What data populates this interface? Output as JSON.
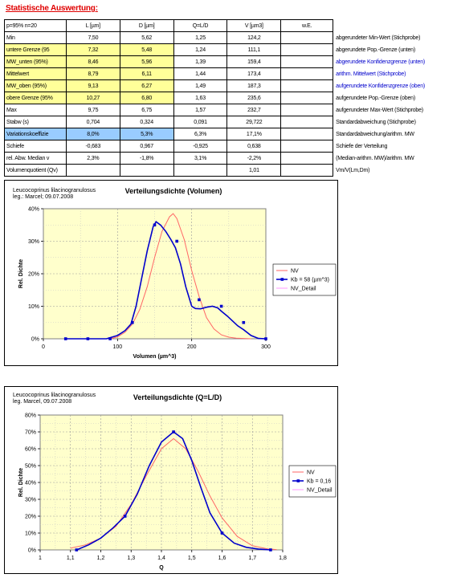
{
  "sheet": {
    "title": "Statistische Auswertung:",
    "header": [
      "p=95% n=20",
      "L [µm]",
      "D [µm]",
      "Q=L/D",
      "V [µm3]",
      "w.E."
    ],
    "rows": [
      {
        "label": "Min",
        "L": "7,50",
        "D": "5,62",
        "Q": "1,25",
        "V": "124,2",
        "note": "abgerundeter Min-Wert (Stichprobe)",
        "style": "plain",
        "note_color": "black"
      },
      {
        "label": "untere Grenze (95",
        "L": "7,32",
        "D": "5,48",
        "Q": "1,24",
        "V": "111,1",
        "note": "abgerundete Pop.-Grenze (unten)",
        "style": "yellow",
        "note_color": "black"
      },
      {
        "label": "MW_unten (95%)",
        "L": "8,46",
        "D": "5,96",
        "Q": "1,39",
        "V": "159,4",
        "note": "abgerundete Konfidenzgrenze (unten)",
        "style": "yellow",
        "note_color": "blue"
      },
      {
        "label": "Mittelwert",
        "L": "8,79",
        "D": "6,11",
        "Q": "1,44",
        "V": "173,4",
        "note": "arithm. Mittelwert (Stichprobe)",
        "style": "yellow",
        "note_color": "blue"
      },
      {
        "label": "MW_oben (95%)",
        "L": "9,13",
        "D": "6,27",
        "Q": "1,49",
        "V": "187,3",
        "note": "aufgerundete Konfidenzgrenze (oben)",
        "style": "yellow",
        "note_color": "blue"
      },
      {
        "label": "obere Grenze (95%",
        "L": "10,27",
        "D": "6,80",
        "Q": "1,63",
        "V": "235,6",
        "note": "aufgerundete Pop.-Grenze (oben)",
        "style": "yellow",
        "note_color": "black"
      },
      {
        "label": "Max",
        "L": "9,75",
        "D": "6,75",
        "Q": "1,57",
        "V": "232,7",
        "note": "aufgerundeter Max-Wert (Stichprobe)",
        "style": "plain",
        "note_color": "black"
      },
      {
        "label": "Stabw (s)",
        "L": "0,704",
        "D": "0,324",
        "Q": "0,091",
        "V": "29,722",
        "note": "Standardabweichung (Stichprobe)",
        "style": "plain",
        "note_color": "black"
      },
      {
        "label": "Variationskoeffizie",
        "L": "8,0%",
        "D": "5,3%",
        "Q": "6,3%",
        "V": "17,1%",
        "note": "Standardabweichung/arithm. MW",
        "style": "blue",
        "note_color": "black"
      },
      {
        "label": "Schiefe",
        "L": "-0,683",
        "D": "0,967",
        "Q": "-0,925",
        "V": "0,638",
        "note": "Schiefe der Verteilung",
        "style": "plain",
        "note_color": "black"
      },
      {
        "label": "rel. Abw. Median v",
        "L": "2,3%",
        "D": "-1,8%",
        "Q": "3,1%",
        "V": "-2,2%",
        "note": "(Median-arithm. MW)/arithm. MW",
        "style": "plain",
        "note_color": "black"
      },
      {
        "label": "Volumenquotient (Qv)",
        "L": "",
        "D": "",
        "Q": "",
        "V": "1,01",
        "note": "Vm/V(Lm,Dm)",
        "style": "plain",
        "note_color": "black"
      }
    ]
  },
  "chart_data": [
    {
      "type": "line",
      "title": "Verteilungsdichte (Volumen)",
      "species": "Leucocoprinus lilacinogranulosus",
      "author": "leg.: Marcel; 09.07.2008",
      "xlabel": "Volumen (µm^3)",
      "ylabel": "Rel. Dichte",
      "xlim": [
        0,
        300
      ],
      "ylim": [
        0,
        0.4
      ],
      "xticks": [
        0,
        100,
        200,
        300
      ],
      "xtick_labels": [
        "0",
        "100",
        "200",
        "300"
      ],
      "yticks": [
        0,
        0.1,
        0.2,
        0.3,
        0.4
      ],
      "ytick_labels": [
        "0%",
        "10%",
        "20%",
        "30%",
        "40%"
      ],
      "plot_bg": "#ffffcc",
      "grid": true,
      "legend_position": "right",
      "series": [
        {
          "name": "NV",
          "color": "#ff6666",
          "marker": false,
          "x": [
            90,
            100,
            110,
            120,
            130,
            140,
            150,
            160,
            170,
            175,
            180,
            190,
            200,
            210,
            220,
            230,
            240,
            250,
            260,
            270,
            280
          ],
          "y": [
            0.0,
            0.006,
            0.02,
            0.045,
            0.09,
            0.16,
            0.25,
            0.33,
            0.375,
            0.385,
            0.37,
            0.305,
            0.21,
            0.13,
            0.065,
            0.03,
            0.012,
            0.005,
            0.002,
            0.001,
            0.0
          ]
        },
        {
          "name": "Kb = 58 (µm^3)",
          "color": "#0000cc",
          "marker": true,
          "x": [
            30,
            60,
            90,
            120,
            150,
            180,
            210,
            240,
            270,
            300
          ],
          "y": [
            0.0,
            0.0,
            0.0,
            0.05,
            0.35,
            0.3,
            0.12,
            0.1,
            0.05,
            0.0
          ],
          "curve_x": [
            30,
            60,
            85,
            100,
            110,
            118,
            125,
            132,
            140,
            148,
            152,
            158,
            165,
            172,
            178,
            185,
            192,
            200,
            205,
            212,
            220,
            228,
            235,
            240,
            248,
            255,
            262,
            270,
            280,
            290,
            300
          ],
          "curve_y": [
            0.0,
            0.0,
            0.0,
            0.01,
            0.025,
            0.045,
            0.1,
            0.18,
            0.27,
            0.345,
            0.36,
            0.35,
            0.33,
            0.305,
            0.28,
            0.23,
            0.16,
            0.1,
            0.093,
            0.092,
            0.097,
            0.1,
            0.095,
            0.085,
            0.07,
            0.055,
            0.04,
            0.028,
            0.01,
            0.001,
            0.0
          ]
        },
        {
          "name": "NV_Detail",
          "color": "#ff99ff",
          "marker": false,
          "x": [],
          "y": []
        }
      ]
    },
    {
      "type": "line",
      "title": "Verteilungsdichte (Q=L/D)",
      "species": "Leucocoprinus lilacinogranulosus",
      "author": "leg. Marcel, 09.07.2008",
      "xlabel": "Q",
      "ylabel": "Rel. Dichte",
      "xlim": [
        1.0,
        1.8
      ],
      "ylim": [
        0,
        0.8
      ],
      "xticks": [
        1.0,
        1.1,
        1.2,
        1.3,
        1.4,
        1.5,
        1.6,
        1.7,
        1.8
      ],
      "xtick_labels": [
        "1",
        "1,1",
        "1,2",
        "1,3",
        "1,4",
        "1,5",
        "1,6",
        "1,7",
        "1,8"
      ],
      "yticks": [
        0,
        0.1,
        0.2,
        0.3,
        0.4,
        0.5,
        0.6,
        0.7,
        0.8
      ],
      "ytick_labels": [
        "0%",
        "10%",
        "20%",
        "30%",
        "40%",
        "50%",
        "60%",
        "70%",
        "80%"
      ],
      "plot_bg": "#ffffcc",
      "grid": true,
      "legend_position": "right",
      "series": [
        {
          "name": "NV",
          "color": "#ff6666",
          "marker": false,
          "x": [
            1.1,
            1.15,
            1.2,
            1.25,
            1.3,
            1.35,
            1.4,
            1.44,
            1.48,
            1.52,
            1.56,
            1.6,
            1.65,
            1.7,
            1.75,
            1.78
          ],
          "y": [
            0.01,
            0.03,
            0.07,
            0.14,
            0.27,
            0.44,
            0.6,
            0.66,
            0.6,
            0.47,
            0.32,
            0.19,
            0.08,
            0.025,
            0.006,
            0.002
          ]
        },
        {
          "name": "Kb = 0,16",
          "color": "#0000cc",
          "marker": true,
          "x": [
            1.12,
            1.28,
            1.44,
            1.6,
            1.76
          ],
          "y": [
            0.0,
            0.2,
            0.7,
            0.1,
            0.0
          ],
          "curve_x": [
            1.12,
            1.16,
            1.2,
            1.24,
            1.28,
            1.32,
            1.36,
            1.4,
            1.44,
            1.47,
            1.5,
            1.53,
            1.56,
            1.6,
            1.64,
            1.68,
            1.72,
            1.76
          ],
          "curve_y": [
            0.0,
            0.03,
            0.07,
            0.13,
            0.2,
            0.33,
            0.5,
            0.64,
            0.7,
            0.66,
            0.53,
            0.37,
            0.22,
            0.1,
            0.04,
            0.015,
            0.005,
            0.0
          ]
        },
        {
          "name": "NV_Detail",
          "color": "#ff99ff",
          "marker": false,
          "x": [],
          "y": []
        }
      ]
    }
  ]
}
